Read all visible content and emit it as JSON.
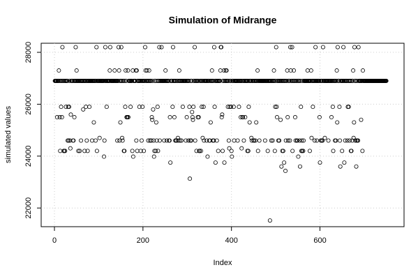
{
  "chart_data": {
    "type": "scatter",
    "title": "Simulation of Midrange",
    "x_label": "Index",
    "y_label": "simulated values",
    "xlim": [
      -30,
      790
    ],
    "ylim": [
      21280,
      28350
    ],
    "xticks": [
      0,
      200,
      400,
      600
    ],
    "yticks": [
      22000,
      24000,
      26000,
      28000
    ],
    "grid": true,
    "color": "#000000",
    "values": [
      26900,
      26900,
      26900,
      26900,
      26900,
      25500,
      26900,
      26900,
      26900,
      27300,
      26900,
      25500,
      24200,
      26900,
      25900,
      26900,
      25500,
      28200,
      26900,
      26900,
      24200,
      24200,
      26900,
      24200,
      26900,
      25900,
      26900,
      26900,
      26900,
      24600,
      25900,
      24600,
      25900,
      26900,
      24600,
      24300,
      25600,
      26900,
      26900,
      26900,
      26900,
      24600,
      24600,
      26900,
      25500,
      26900,
      26900,
      28200,
      26900,
      27300,
      26900,
      26900,
      26900,
      24200,
      26900,
      26900,
      24200,
      26900,
      26900,
      24600,
      26900,
      26900,
      26900,
      26900,
      25800,
      26900,
      26900,
      24200,
      26900,
      26900,
      25900,
      26900,
      24600,
      26900,
      24200,
      26900,
      26900,
      26900,
      25900,
      26900,
      26900,
      26900,
      26900,
      26900,
      24600,
      26900,
      26900,
      26900,
      25300,
      26900,
      26900,
      26900,
      24600,
      26900,
      28200,
      24200,
      26900,
      26900,
      26900,
      26900,
      26900,
      24700,
      26900,
      26900,
      26900,
      26900,
      26900,
      26900,
      26900,
      26900,
      26900,
      23980,
      24600,
      26900,
      28200,
      26900,
      26900,
      25900,
      26900,
      26900,
      26900,
      26900,
      26900,
      26900,
      27300,
      28200,
      26900,
      26900,
      26900,
      26900,
      26900,
      26900,
      26900,
      26900,
      26900,
      27300,
      26900,
      26900,
      26900,
      26900,
      26900,
      24600,
      26900,
      26900,
      28200,
      27300,
      24600,
      26900,
      25300,
      26900,
      28200,
      26900,
      24700,
      24600,
      26900,
      26900,
      24200,
      24200,
      26900,
      25900,
      27300,
      26900,
      25500,
      25500,
      25500,
      27300,
      25500,
      26900,
      26900,
      26900,
      26900,
      25900,
      26900,
      26900,
      26900,
      24200,
      27300,
      23980,
      26900,
      26900,
      26900,
      26900,
      26900,
      27300,
      24600,
      27300,
      24200,
      26900,
      26900,
      26900,
      26900,
      25900,
      26900,
      26900,
      24200,
      26900,
      24600,
      26900,
      25900,
      26900,
      26900,
      24200,
      26900,
      26900,
      28200,
      27300,
      26900,
      26900,
      27300,
      26900,
      26900,
      24600,
      26900,
      27300,
      26900,
      24600,
      26900,
      26900,
      24600,
      25500,
      25400,
      26900,
      25800,
      24600,
      23980,
      24200,
      26900,
      26900,
      24200,
      25300,
      24600,
      26900,
      25900,
      24200,
      26900,
      26900,
      28200,
      24600,
      26900,
      26900,
      26900,
      28200,
      26900,
      26900,
      26900,
      26900,
      26900,
      24600,
      26900,
      26900,
      27300,
      26900,
      26900,
      24600,
      26900,
      26900,
      26900,
      26900,
      24600,
      24600,
      25500,
      23750,
      26900,
      26900,
      26900,
      26900,
      25900,
      28200,
      26900,
      26900,
      25500,
      26900,
      24600,
      26900,
      24600,
      24600,
      26900,
      26900,
      24700,
      24600,
      26900,
      27300,
      26900,
      24600,
      26900,
      26900,
      24600,
      26900,
      26900,
      25900,
      26900,
      26900,
      26900,
      26900,
      26900,
      26900,
      24600,
      26900,
      25500,
      26900,
      26900,
      26900,
      24600,
      26900,
      25900,
      23130,
      24600,
      26900,
      24600,
      26900,
      25700,
      25500,
      25400,
      25900,
      26900,
      26900,
      28200,
      24600,
      26900,
      26900,
      24200,
      26900,
      26900,
      25500,
      26900,
      25500,
      24200,
      24200,
      26900,
      26900,
      24200,
      26900,
      25900,
      26900,
      24700,
      26900,
      25900,
      24600,
      26900,
      26900,
      26900,
      26900,
      26900,
      24600,
      26900,
      23980,
      26900,
      26900,
      26900,
      24600,
      24600,
      26900,
      25300,
      26900,
      26900,
      27300,
      26900,
      24600,
      26900,
      24600,
      28200,
      25900,
      26900,
      23750,
      26900,
      26900,
      24600,
      26900,
      26900,
      24200,
      26900,
      26900,
      26900,
      26900,
      27300,
      28200,
      28200,
      25500,
      25600,
      24200,
      26900,
      26900,
      27300,
      23750,
      26900,
      26900,
      27300,
      26900,
      27300,
      26900,
      26900,
      25900,
      26900,
      24600,
      24300,
      25900,
      26900,
      26900,
      25900,
      24200,
      23980,
      26900,
      26900,
      26900,
      25900,
      24600,
      26900,
      26900,
      26900,
      26900,
      26900,
      26900,
      26900,
      24600,
      26900,
      26900,
      25900,
      26900,
      26900,
      26900,
      25500,
      26900,
      24300,
      26900,
      25500,
      25500,
      26900,
      24600,
      26900,
      26900,
      25500,
      26900,
      26900,
      26900,
      26900,
      24200,
      26900,
      24200,
      25900,
      26900,
      25300,
      26900,
      26900,
      26900,
      24700,
      24600,
      26900,
      26900,
      26900,
      24600,
      24600,
      26900,
      26900,
      24600,
      26900,
      25300,
      26900,
      26900,
      27300,
      24200,
      26900,
      26900,
      24600,
      26900,
      26900,
      26900,
      26900,
      26900,
      26900,
      26900,
      26900,
      26900,
      26900,
      26900,
      26900,
      24600,
      26900,
      26900,
      26900,
      26900,
      26900,
      24200,
      26900,
      26900,
      26900,
      26900,
      21520,
      26900,
      26900,
      24600,
      26900,
      26900,
      24600,
      26900,
      26900,
      27300,
      26900,
      24200,
      25900,
      26900,
      28200,
      25900,
      25500,
      26900,
      26900,
      24600,
      26900,
      24600,
      26900,
      26900,
      25400,
      26900,
      23600,
      26900,
      24200,
      26900,
      24200,
      26900,
      23750,
      26900,
      26900,
      23430,
      24600,
      26900,
      26900,
      27300,
      25500,
      24600,
      26900,
      26900,
      26900,
      24600,
      28200,
      27300,
      26900,
      26900,
      28200,
      24200,
      26900,
      26900,
      27300,
      26900,
      26900,
      25500,
      24600,
      26900,
      26900,
      24600,
      24600,
      26900,
      23980,
      26900,
      26900,
      24600,
      23600,
      26900,
      25900,
      24200,
      24600,
      24200,
      26900,
      24200,
      24600,
      26900,
      26900,
      26900,
      26900,
      26900,
      26900,
      26900,
      26900,
      27300,
      26900,
      26900,
      26900,
      26900,
      24200,
      26900,
      26900,
      27300,
      24700,
      26900,
      26900,
      25900,
      26900,
      26900,
      26900,
      24600,
      26900,
      28200,
      26900,
      26900,
      24600,
      26900,
      26900,
      26900,
      26900,
      26900,
      25500,
      23750,
      26900,
      24600,
      26900,
      24600,
      26900,
      24600,
      28200,
      26900,
      26900,
      26900,
      24700,
      26900,
      26900,
      26900,
      26900,
      26900,
      26900,
      26900,
      24600,
      26900,
      26900,
      26900,
      26900,
      26900,
      26900,
      25500,
      26900,
      26900,
      25900,
      24200,
      26900,
      26900,
      26900,
      24600,
      26900,
      24600,
      26900,
      27300,
      25300,
      28200,
      26900,
      26900,
      26900,
      25900,
      24600,
      23600,
      26900,
      26900,
      26900,
      24200,
      26900,
      26900,
      28200,
      26900,
      23750,
      26900,
      24600,
      26900,
      26900,
      26900,
      26900,
      24600,
      25900,
      26900,
      25900,
      26900,
      24600,
      26900,
      26900,
      24200,
      24200,
      26900,
      24600,
      26900,
      27300,
      24700,
      25300,
      28200,
      26900,
      24600,
      26900,
      23600,
      24600,
      26900,
      24600,
      24600,
      28200,
      26900,
      26900,
      26900,
      26900,
      26900,
      25400,
      26900,
      26900,
      24200,
      27300,
      26900,
      26900,
      26900,
      26900,
      26900,
      26900,
      26900,
      26900,
      26900,
      26900,
      26900,
      26900,
      26900,
      26900,
      26900,
      26900,
      26900,
      26900,
      26900,
      26900,
      26900,
      26900,
      26900,
      26900,
      26900,
      26900,
      26900,
      26900,
      26900,
      26900,
      26900,
      26900,
      26900,
      26900,
      26900,
      26900,
      26900,
      26900,
      26900,
      26900,
      26900,
      26900,
      26900,
      26900,
      26900,
      26900,
      26900,
      26900,
      26900,
      26900,
      26900,
      26900,
      26900
    ]
  }
}
